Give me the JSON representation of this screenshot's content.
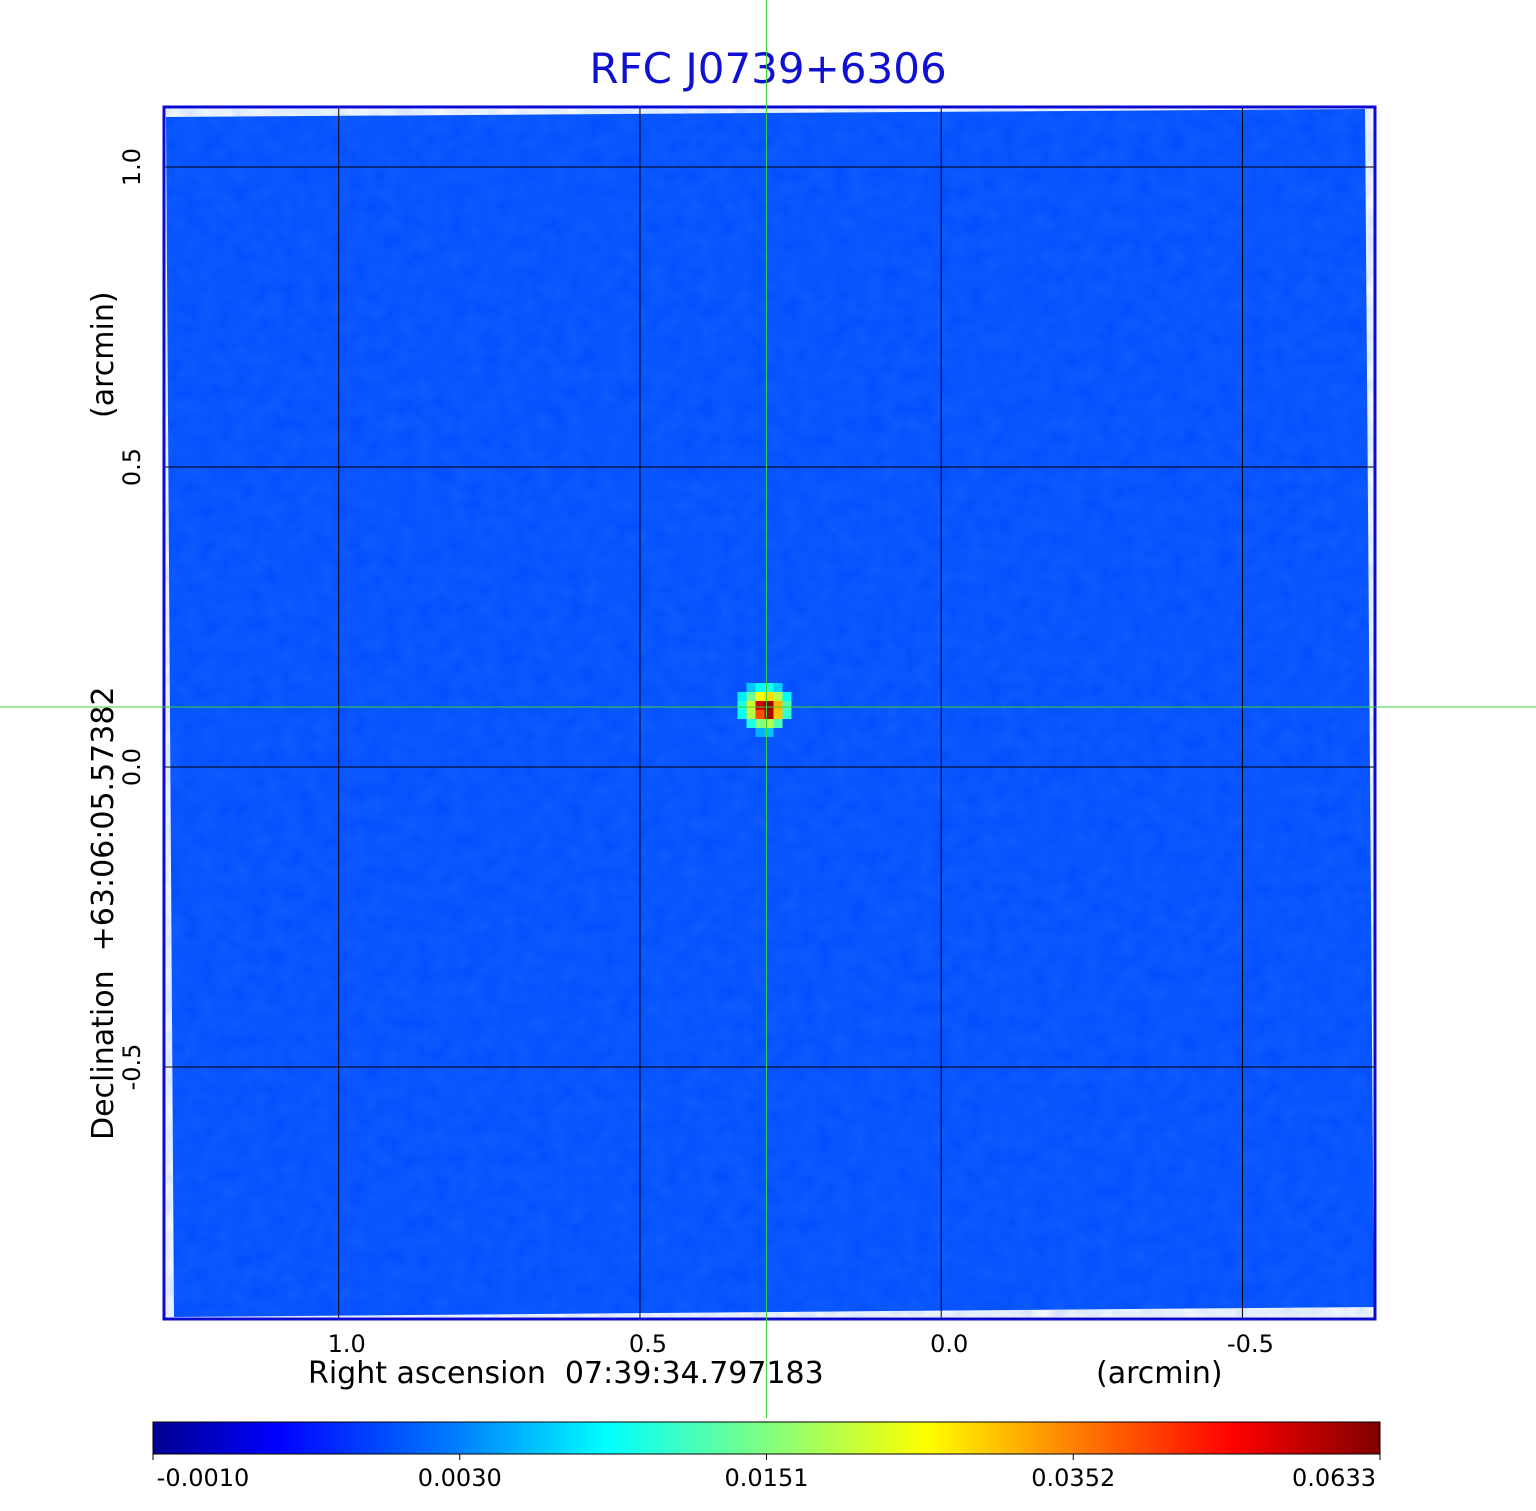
{
  "chart_data": {
    "type": "heatmap",
    "title": "RFC J0739+6306",
    "xlabel": "Right ascension  07:39:34.797183",
    "xlabel_unit": "(arcmin)",
    "ylabel": "Declination  +63:06:05.57382",
    "ylabel_unit": "(arcmin)",
    "x_ticks": [
      "1.0",
      "0.5",
      "0.0",
      "-0.5"
    ],
    "x_tick_values": [
      1.0,
      0.5,
      0.0,
      -0.5
    ],
    "y_ticks": [
      "1.0",
      "0.5",
      "0.0",
      "-0.5"
    ],
    "y_tick_values": [
      1.0,
      0.5,
      0.0,
      -0.5
    ],
    "xlim": [
      1.29,
      -0.72
    ],
    "ylim": [
      -0.92,
      1.1
    ],
    "grid": true,
    "colormap": "jet",
    "colorbar_ticks": [
      "-0.0010",
      "0.0030",
      "0.0151",
      "0.0352",
      "0.0633"
    ],
    "colorbar_values": [
      -0.001,
      0.003,
      0.0151,
      0.0352,
      0.0633
    ],
    "peak": {
      "x": 0.29,
      "y": 0.1,
      "value": 0.0633
    },
    "crosshair": {
      "x": 0.29,
      "y": 0.1
    },
    "background_value": 0.0015
  },
  "colors": {
    "title": "#1010d0",
    "frame": "#0a0ad2",
    "crosshair": "#3ad23a",
    "grid": "#000000"
  }
}
